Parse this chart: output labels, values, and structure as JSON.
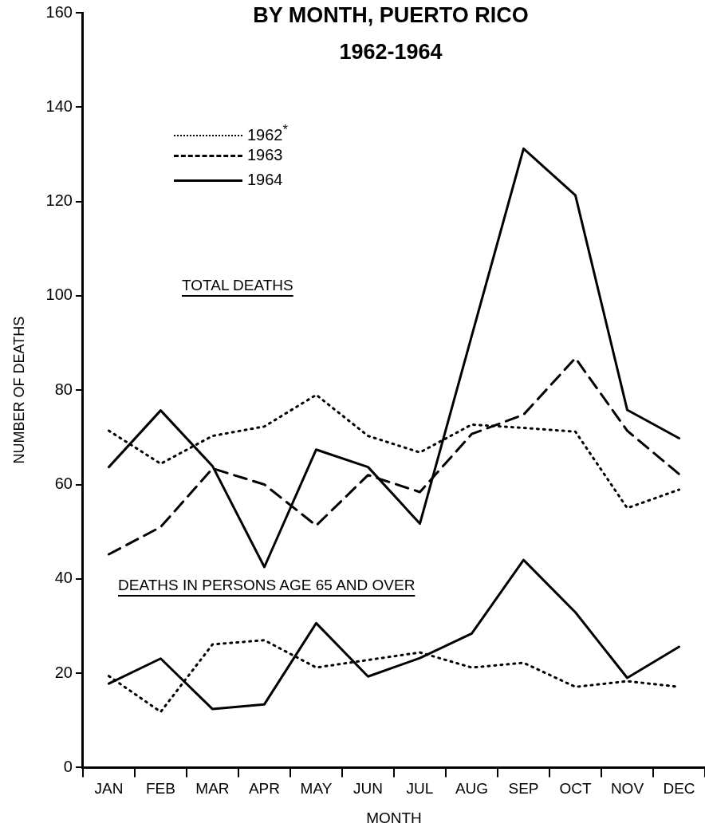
{
  "chart_data": {
    "type": "line",
    "title": "BY MONTH, PUERTO RICO",
    "subtitle": "1962-1964",
    "xlabel": "MONTH",
    "ylabel": "NUMBER OF DEATHS",
    "annotations": [
      "TOTAL DEATHS",
      "DEATHS IN PERSONS AGE 65 AND OVER"
    ],
    "categories": [
      "JAN",
      "FEB",
      "MAR",
      "APR",
      "MAY",
      "JUN",
      "JUL",
      "AUG",
      "SEP",
      "OCT",
      "NOV",
      "DEC"
    ],
    "ylim": [
      0,
      160
    ],
    "yticks": [
      0,
      20,
      40,
      60,
      80,
      100,
      120,
      140,
      160
    ],
    "grid": false,
    "legend": "top left",
    "marker": "none",
    "series": [
      {
        "name": "1962$^{*}$",
        "color": "#000000",
        "line_style": "dotted",
        "values": [
          71.4,
          64.4,
          70.3,
          72.3,
          79,
          70.3,
          66.8,
          72.7,
          72,
          71.2,
          55,
          58.9
        ]
      },
      {
        "name": "1963",
        "color": "#000000",
        "line_style": "dashed",
        "values": [
          45.2,
          51,
          63.4,
          60,
          51.3,
          62,
          58.4,
          70.7,
          74.8,
          86.8,
          71.4,
          62.2
        ]
      },
      {
        "name": "1964",
        "color": "#000000",
        "line_style": "solid",
        "values": [
          63.7,
          75.7,
          63.9,
          42.5,
          67.4,
          63.7,
          51.7,
          91.5,
          131.2,
          121.3,
          75.8,
          69.8
        ]
      },
      {
        "color": "#000000",
        "line_style": "dotted",
        "values": [
          19.4,
          11.8,
          26.1,
          27,
          21.2,
          22.8,
          24.4,
          21.2,
          22.2,
          17.1,
          18.3,
          17.1
        ]
      },
      {
        "color": "#000000",
        "line_style": "solid",
        "values": [
          17.8,
          23.1,
          12.4,
          13.4,
          30.6,
          19.3,
          23.2,
          28.4,
          44,
          32.9,
          19,
          25.6
        ]
      }
    ]
  }
}
